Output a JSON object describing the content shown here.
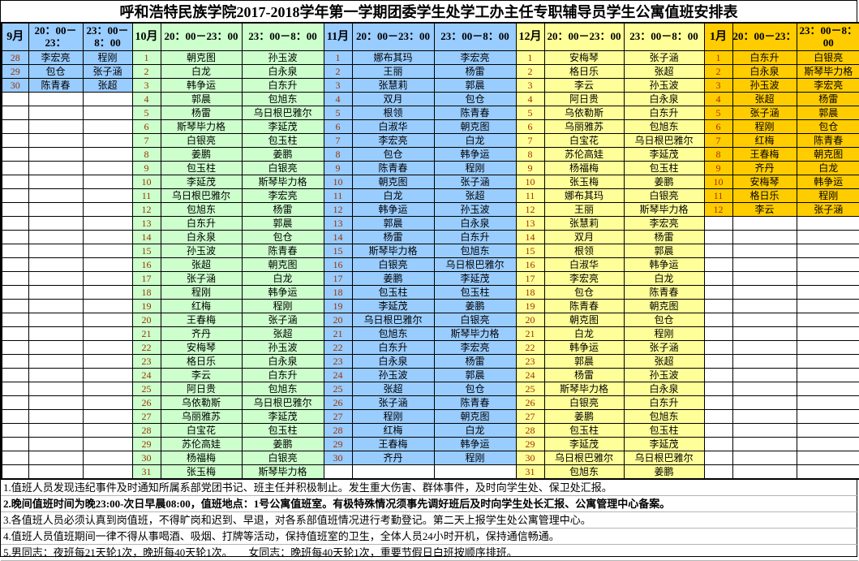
{
  "title": "呼和浩特民族学院2017-2018学年第一学期团委学生处学工办主任专职辅导员学生公寓值班安排表",
  "colors": {
    "september": "#99CCFF",
    "october": "#CCFFCC",
    "november": "#99CCFF",
    "december": "#FFFF99",
    "january": "#FFCC00",
    "date_text": "#993300",
    "empty_cell": "#FFFFFF"
  },
  "months": [
    {
      "label": "9月",
      "shift1_header": "20：00－23：",
      "shift2_header": "23：00－8：00",
      "color": "#99CCFF",
      "days": [
        [
          "28",
          "李宏亮",
          "程刚"
        ],
        [
          "29",
          "包仓",
          "张子涵"
        ],
        [
          "30",
          "陈青春",
          "张超"
        ],
        [
          "",
          "",
          ""
        ],
        [
          "",
          "",
          ""
        ],
        [
          "",
          "",
          ""
        ],
        [
          "",
          "",
          ""
        ],
        [
          "",
          "",
          ""
        ],
        [
          "",
          "",
          ""
        ],
        [
          "",
          "",
          ""
        ],
        [
          "",
          "",
          ""
        ],
        [
          "",
          "",
          ""
        ],
        [
          "",
          "",
          ""
        ],
        [
          "",
          "",
          ""
        ],
        [
          "",
          "",
          ""
        ],
        [
          "",
          "",
          ""
        ],
        [
          "",
          "",
          ""
        ],
        [
          "",
          "",
          ""
        ],
        [
          "",
          "",
          ""
        ],
        [
          "",
          "",
          ""
        ],
        [
          "",
          "",
          ""
        ],
        [
          "",
          "",
          ""
        ],
        [
          "",
          "",
          ""
        ],
        [
          "",
          "",
          ""
        ],
        [
          "",
          "",
          ""
        ],
        [
          "",
          "",
          ""
        ],
        [
          "",
          "",
          ""
        ],
        [
          "",
          "",
          ""
        ],
        [
          "",
          "",
          ""
        ],
        [
          "",
          "",
          ""
        ],
        [
          "",
          "",
          ""
        ]
      ]
    },
    {
      "label": "10月",
      "shift1_header": "20：00－23：00",
      "shift2_header": "23：00－8：00",
      "color": "#CCFFCC",
      "days": [
        [
          "1",
          "朝克图",
          "孙玉波"
        ],
        [
          "2",
          "白龙",
          "白永泉"
        ],
        [
          "3",
          "韩争运",
          "白东升"
        ],
        [
          "4",
          "郭晨",
          "包旭东"
        ],
        [
          "5",
          "杨雷",
          "乌日根巴雅尔"
        ],
        [
          "6",
          "斯琴毕力格",
          "李延茂"
        ],
        [
          "7",
          "白银亮",
          "包玉柱"
        ],
        [
          "8",
          "姜鹏",
          "姜鹏"
        ],
        [
          "9",
          "包玉柱",
          "白银亮"
        ],
        [
          "10",
          "李延茂",
          "斯琴毕力格"
        ],
        [
          "11",
          "乌日根巴雅尔",
          "李宏亮"
        ],
        [
          "12",
          "包旭东",
          "杨雷"
        ],
        [
          "13",
          "白东升",
          "郭晨"
        ],
        [
          "14",
          "白永泉",
          "包仓"
        ],
        [
          "15",
          "孙玉波",
          "陈青春"
        ],
        [
          "16",
          "张超",
          "朝克图"
        ],
        [
          "17",
          "张子涵",
          "白龙"
        ],
        [
          "18",
          "程刚",
          "韩争运"
        ],
        [
          "19",
          "红梅",
          "程刚"
        ],
        [
          "20",
          "王春梅",
          "张子涵"
        ],
        [
          "21",
          "齐丹",
          "张超"
        ],
        [
          "22",
          "安梅琴",
          "孙玉波"
        ],
        [
          "23",
          "格日乐",
          "白永泉"
        ],
        [
          "24",
          "李云",
          "白东升"
        ],
        [
          "25",
          "阿日贵",
          "包旭东"
        ],
        [
          "26",
          "乌依勒斯",
          "乌日根巴雅尔"
        ],
        [
          "27",
          "乌丽雅苏",
          "李延茂"
        ],
        [
          "28",
          "白宝花",
          "包玉柱"
        ],
        [
          "29",
          "苏伦高娃",
          "姜鹏"
        ],
        [
          "30",
          "杨福梅",
          "白银亮"
        ],
        [
          "31",
          "张玉梅",
          "斯琴毕力格"
        ]
      ]
    },
    {
      "label": "11月",
      "shift1_header": "20：00－23：00",
      "shift2_header": "23：00－8：00",
      "color": "#99CCFF",
      "days": [
        [
          "1",
          "娜布其玛",
          "李宏亮"
        ],
        [
          "2",
          "王丽",
          "杨雷"
        ],
        [
          "3",
          "张慧莉",
          "郭晨"
        ],
        [
          "4",
          "双月",
          "包仓"
        ],
        [
          "5",
          "根领",
          "陈青春"
        ],
        [
          "6",
          "白淑华",
          "朝克图"
        ],
        [
          "7",
          "李宏亮",
          "白龙"
        ],
        [
          "8",
          "包仓",
          "韩争运"
        ],
        [
          "9",
          "陈青春",
          "程刚"
        ],
        [
          "10",
          "朝克图",
          "张子涵"
        ],
        [
          "11",
          "白龙",
          "张超"
        ],
        [
          "12",
          "韩争运",
          "孙玉波"
        ],
        [
          "13",
          "郭晨",
          "白永泉"
        ],
        [
          "14",
          "杨雷",
          "白东升"
        ],
        [
          "15",
          "斯琴毕力格",
          "包旭东"
        ],
        [
          "16",
          "白银亮",
          "乌日根巴雅尔"
        ],
        [
          "17",
          "姜鹏",
          "李延茂"
        ],
        [
          "18",
          "包玉柱",
          "包玉柱"
        ],
        [
          "19",
          "李延茂",
          "姜鹏"
        ],
        [
          "20",
          "乌日根巴雅尔",
          "白银亮"
        ],
        [
          "21",
          "包旭东",
          "斯琴毕力格"
        ],
        [
          "22",
          "白东升",
          "李宏亮"
        ],
        [
          "23",
          "白永泉",
          "杨雷"
        ],
        [
          "24",
          "孙玉波",
          "郭晨"
        ],
        [
          "25",
          "张超",
          "包仓"
        ],
        [
          "26",
          "张子涵",
          "陈青春"
        ],
        [
          "27",
          "程刚",
          "朝克图"
        ],
        [
          "28",
          "红梅",
          "白龙"
        ],
        [
          "29",
          "王春梅",
          "韩争运"
        ],
        [
          "30",
          "齐丹",
          "程刚"
        ],
        [
          "",
          "",
          ""
        ]
      ]
    },
    {
      "label": "12月",
      "shift1_header": "20：00－23：00",
      "shift2_header": "23：00－8：00",
      "color": "#FFFF99",
      "days": [
        [
          "1",
          "安梅琴",
          "张子涵"
        ],
        [
          "2",
          "格日乐",
          "张超"
        ],
        [
          "3",
          "李云",
          "孙玉波"
        ],
        [
          "4",
          "阿日贵",
          "白永泉"
        ],
        [
          "5",
          "乌依勒斯",
          "白东升"
        ],
        [
          "6",
          "乌丽雅苏",
          "包旭东"
        ],
        [
          "7",
          "白宝花",
          "乌日根巴雅尔"
        ],
        [
          "8",
          "苏伦高娃",
          "李延茂"
        ],
        [
          "9",
          "杨福梅",
          "包玉柱"
        ],
        [
          "10",
          "张玉梅",
          "姜鹏"
        ],
        [
          "11",
          "娜布其玛",
          "白银亮"
        ],
        [
          "12",
          "王丽",
          "斯琴毕力格"
        ],
        [
          "13",
          "张慧莉",
          "李宏亮"
        ],
        [
          "14",
          "双月",
          "杨雷"
        ],
        [
          "15",
          "根领",
          "郭晨"
        ],
        [
          "16",
          "白淑华",
          "韩争运"
        ],
        [
          "17",
          "李宏亮",
          "白龙"
        ],
        [
          "18",
          "包仓",
          "陈青春"
        ],
        [
          "19",
          "陈青春",
          "朝克图"
        ],
        [
          "20",
          "朝克图",
          "包仓"
        ],
        [
          "21",
          "白龙",
          "程刚"
        ],
        [
          "22",
          "韩争运",
          "张子涵"
        ],
        [
          "23",
          "郭晨",
          "张超"
        ],
        [
          "24",
          "杨雷",
          "孙玉波"
        ],
        [
          "25",
          "斯琴毕力格",
          "白永泉"
        ],
        [
          "26",
          "白银亮",
          "白东升"
        ],
        [
          "27",
          "姜鹏",
          "包旭东"
        ],
        [
          "28",
          "包玉柱",
          "包玉柱"
        ],
        [
          "29",
          "李延茂",
          "李延茂"
        ],
        [
          "30",
          "乌日根巴雅尔",
          "乌日根巴雅尔"
        ],
        [
          "31",
          "包旭东",
          "姜鹏"
        ]
      ]
    },
    {
      "label": "1月",
      "shift1_header": "20：00－23：",
      "shift2_header": "23：00－8：00",
      "color": "#FFCC00",
      "days": [
        [
          "1",
          "白东升",
          "白银亮"
        ],
        [
          "2",
          "白永泉",
          "斯琴毕力格"
        ],
        [
          "3",
          "孙玉波",
          "李宏亮"
        ],
        [
          "4",
          "张超",
          "杨雷"
        ],
        [
          "5",
          "张子涵",
          "郭晨"
        ],
        [
          "6",
          "程刚",
          "包仓"
        ],
        [
          "7",
          "红梅",
          "陈青春"
        ],
        [
          "8",
          "王春梅",
          "朝克图"
        ],
        [
          "9",
          "齐丹",
          "白龙"
        ],
        [
          "10",
          "安梅琴",
          "韩争运"
        ],
        [
          "11",
          "格日乐",
          "程刚"
        ],
        [
          "12",
          "李云",
          "张子涵"
        ],
        [
          "",
          "",
          ""
        ],
        [
          "",
          "",
          ""
        ],
        [
          "",
          "",
          ""
        ],
        [
          "",
          "",
          ""
        ],
        [
          "",
          "",
          ""
        ],
        [
          "",
          "",
          ""
        ],
        [
          "",
          "",
          ""
        ],
        [
          "",
          "",
          ""
        ],
        [
          "",
          "",
          ""
        ],
        [
          "",
          "",
          ""
        ],
        [
          "",
          "",
          ""
        ],
        [
          "",
          "",
          ""
        ],
        [
          "",
          "",
          ""
        ],
        [
          "",
          "",
          ""
        ],
        [
          "",
          "",
          ""
        ],
        [
          "",
          "",
          ""
        ],
        [
          "",
          "",
          ""
        ],
        [
          "",
          "",
          ""
        ],
        [
          "",
          "",
          ""
        ]
      ]
    }
  ],
  "notes": [
    {
      "text": "1.值班人员发现违纪事件及时通知所属系部党团书记、班主任并积极制止。发生重大伤害、群体事件，及时向学生处、保卫处汇报。",
      "bold": false
    },
    {
      "text": "2.晚间值班时间为晚23:00-次日早晨08:00，值班地点：1号公寓值班室。有极特殊情况须事先调好班后及时向学生处长汇报、公寓管理中心备案。",
      "bold": true
    },
    {
      "text": "3.各值班人员必须认真到岗值班，不得旷岗和迟到、早退，对各系部值班情况进行考勤登记。第二天上报学生处公寓管理中心。",
      "bold": false
    },
    {
      "text": "4.值班人员值班期间一律不得从事喝酒、吸烟、打牌等活动，保持值班室的卫生，全体人员24小时开机，保持通信畅通。",
      "bold": false
    },
    {
      "text": "5.男同志：夜班每21天轮1次，晚班每40天轮1次。　　女同志：晚班每40天轮1次，重要节假日白班按顺序排班。",
      "bold": false
    }
  ]
}
